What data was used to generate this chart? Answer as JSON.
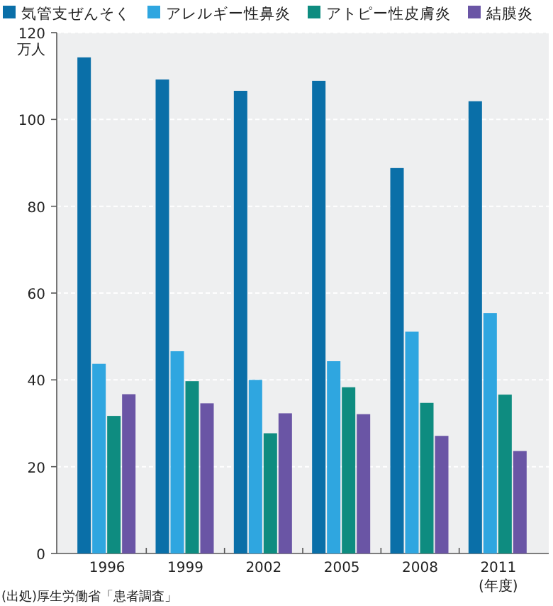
{
  "chart_data": {
    "type": "bar",
    "categories": [
      "1996",
      "1999",
      "2002",
      "2005",
      "2008",
      "2011"
    ],
    "series": [
      {
        "name": "気管支ぜんそく",
        "color": "#0a6fa8",
        "values": [
          114.3,
          109.2,
          106.6,
          108.9,
          88.8,
          104.2
        ]
      },
      {
        "name": "アレルギー性鼻炎",
        "color": "#2fa6e0",
        "values": [
          43.7,
          46.6,
          40,
          44.3,
          51.1,
          55.4
        ]
      },
      {
        "name": "アトピー性皮膚炎",
        "color": "#0e8c80",
        "values": [
          31.7,
          39.7,
          27.7,
          38.3,
          34.7,
          36.6
        ]
      },
      {
        "name": "結膜炎",
        "color": "#6a55a5",
        "values": [
          36.7,
          34.6,
          32.3,
          32.1,
          27.1,
          23.6
        ]
      }
    ],
    "ylim": [
      0,
      120
    ],
    "yticks": [
      0,
      20,
      40,
      60,
      80,
      100,
      120
    ],
    "ylabel": "万人",
    "xlabel": "(年度)",
    "grid": "y",
    "legend": "top",
    "annotations": [
      "(出処)厚生労働省「患者調査」"
    ]
  }
}
